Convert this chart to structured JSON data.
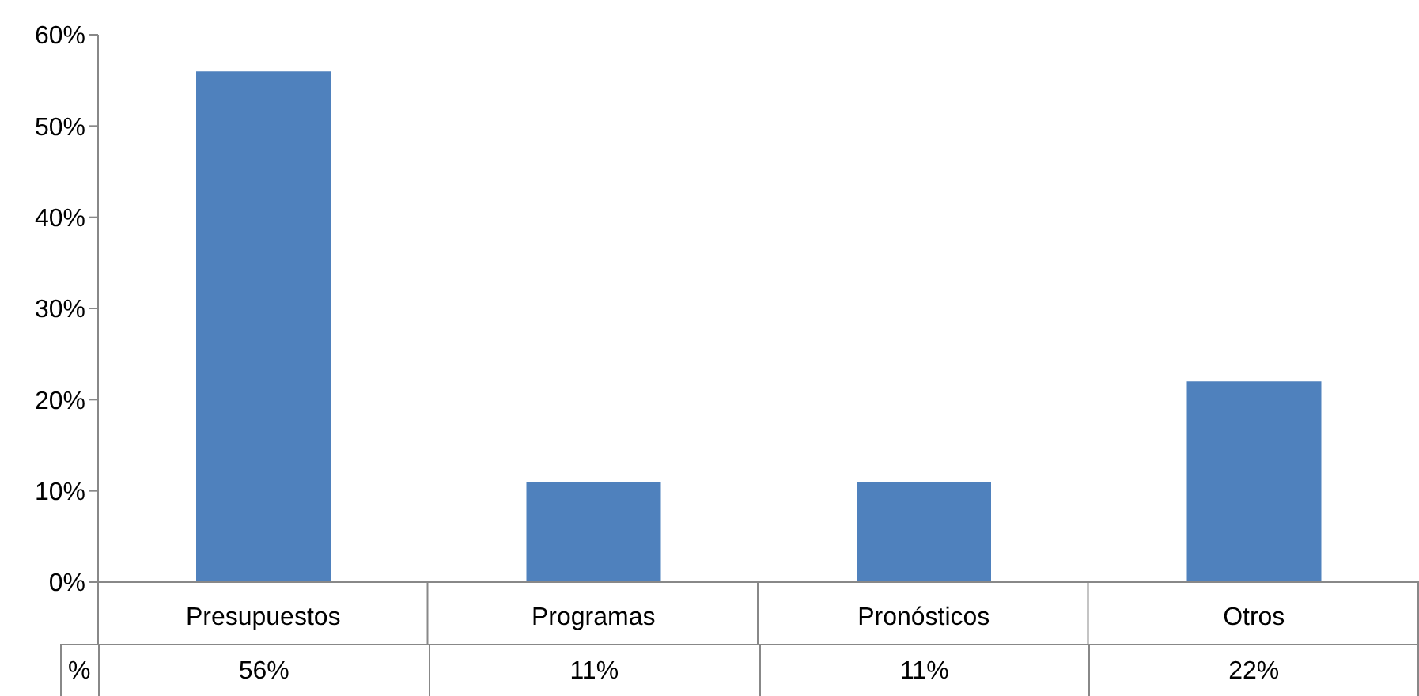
{
  "chart_data": {
    "type": "bar",
    "categories": [
      "Presupuestos",
      "Programas",
      "Pronósticos",
      "Otros"
    ],
    "series": [
      {
        "name": "%",
        "color": "#4f81bd",
        "values": [
          56,
          11,
          11,
          22
        ],
        "value_labels": [
          "56%",
          "11%",
          "11%",
          "22%"
        ]
      }
    ],
    "ylim": [
      0,
      60
    ],
    "yticks": [
      {
        "value": 0,
        "label": "0%"
      },
      {
        "value": 10,
        "label": "10%"
      },
      {
        "value": 20,
        "label": "20%"
      },
      {
        "value": 30,
        "label": "30%"
      },
      {
        "value": 40,
        "label": "40%"
      },
      {
        "value": 50,
        "label": "50%"
      },
      {
        "value": 60,
        "label": "60%"
      }
    ]
  }
}
